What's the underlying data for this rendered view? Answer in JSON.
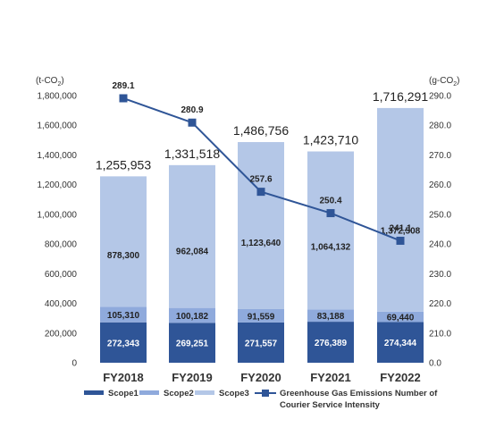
{
  "chart_data": {
    "type": "bar",
    "stacked": true,
    "categories": [
      "FY2018",
      "FY2019",
      "FY2020",
      "FY2021",
      "FY2022"
    ],
    "series": [
      {
        "name": "Scope1",
        "values": [
          272343,
          269251,
          271557,
          276389,
          274344
        ],
        "color": "#2f5597",
        "label_color": "#ffffff"
      },
      {
        "name": "Scope2",
        "values": [
          105310,
          100182,
          91559,
          83188,
          69440
        ],
        "color": "#8faadc",
        "label_color": "#222222"
      },
      {
        "name": "Scope3",
        "values": [
          878300,
          962084,
          1123640,
          1064132,
          1372508
        ],
        "color": "#b4c7e7",
        "label_color": "#222222"
      }
    ],
    "totals": [
      1255953,
      1331518,
      1486756,
      1423710,
      1716291
    ],
    "line": {
      "name": "Greenhouse Gas Emissions Number of Courier Service Intensity",
      "values": [
        289.1,
        280.9,
        257.6,
        250.4,
        241.1
      ],
      "color": "#2f5597",
      "axis": "right"
    },
    "y_left": {
      "unit": "(t-CO",
      "unit_sub": "2",
      "unit_close": ")",
      "range": [
        0,
        1800000
      ],
      "ticks": [
        "0",
        "200,000",
        "400,000",
        "600,000",
        "800,000",
        "1,000,000",
        "1,200,000",
        "1,400,000",
        "1,600,000",
        "1,800,000"
      ]
    },
    "y_right": {
      "unit": "(g-CO",
      "unit_sub": "2",
      "unit_close": ")",
      "range": [
        0,
        290
      ],
      "ticks": [
        "0.0",
        "210.0",
        "220.0",
        "230.0",
        "240.0",
        "250.0",
        "260.0",
        "270.0",
        "280.0",
        "290.0"
      ]
    },
    "grid": false,
    "legend_position": "bottom",
    "legend_line1": "Greenhouse Gas Emissions Number of",
    "legend_line2": "Courier Service Intensity"
  }
}
